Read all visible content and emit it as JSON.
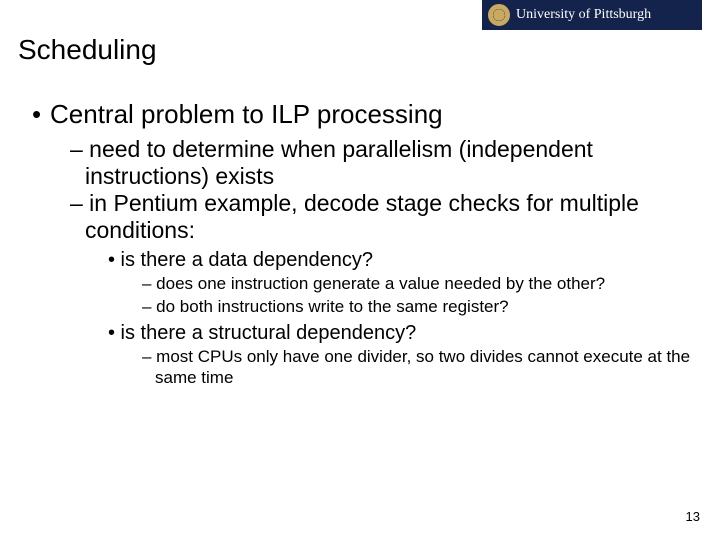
{
  "logo": {
    "text": "University of Pittsburgh"
  },
  "title": "Scheduling",
  "bullets": {
    "l1": "Central problem to ILP processing",
    "l2a": "– need to determine when parallelism (independent instructions) exists",
    "l2b": "– in Pentium example, decode stage checks for multiple conditions:",
    "l3a": "• is there a data dependency?",
    "l4a": "– does one instruction generate a value needed by the other?",
    "l4b": "– do both instructions write to the same register?",
    "l3b": "• is there a structural dependency?",
    "l4c": "– most CPUs only have one divider, so two divides cannot execute at the same time"
  },
  "pageNumber": "13"
}
